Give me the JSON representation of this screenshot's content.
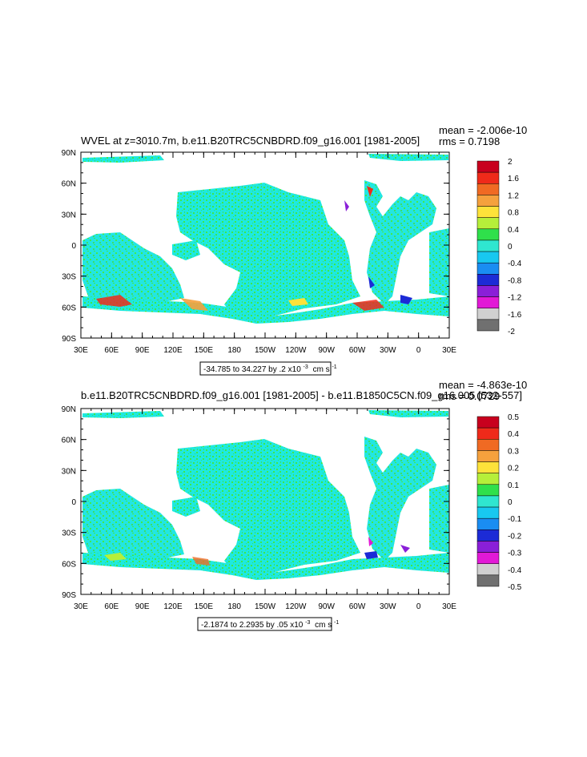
{
  "panels": [
    {
      "title": "WVEL at z=3010.7m, b.e11.B20TRC5CNBDRD.f09_g16.001 [1981-2005]",
      "mean_text": "mean = -2.006e-10",
      "rms_text": "rms = 0.7198",
      "range_text": "-34.785 to 34.227 by .2 x10",
      "range_exp": "-3",
      "range_unit": "cm s",
      "range_unit_exp": "-1",
      "colorbar_labels": [
        "2",
        "1.6",
        "1.2",
        "0.8",
        "0.4",
        "0",
        "-0.4",
        "-0.8",
        "-1.2",
        "-1.6",
        "-2"
      ]
    },
    {
      "title": "b.e11.B20TRC5CNBDRD.f09_g16.001 [1981-2005] - b.e11.B1850C5CN.f09_g16.005 [532-557]",
      "mean_text": "mean = -4.863e-10",
      "rms_text": "rms = 0.0729",
      "range_text": "-2.1874 to 2.2935 by .05 x10",
      "range_exp": "-3",
      "range_unit": "cm s",
      "range_unit_exp": "-1",
      "colorbar_labels": [
        "0.5",
        "0.4",
        "0.3",
        "0.2",
        "0.1",
        "0",
        "-0.1",
        "-0.2",
        "-0.3",
        "-0.4",
        "-0.5"
      ]
    }
  ],
  "map_axes": {
    "lon_labels": [
      "30E",
      "60E",
      "90E",
      "120E",
      "150E",
      "180",
      "150W",
      "120W",
      "90W",
      "60W",
      "30W",
      "0",
      "30E"
    ],
    "lat_labels": [
      "90N",
      "60N",
      "30N",
      "0",
      "30S",
      "60S",
      "90S"
    ]
  },
  "colors": {
    "ocean_base": "#1ee9e0",
    "ocean_green": "#3ee84a",
    "land": "#ffffff",
    "colorbar": [
      "#c8001e",
      "#ef2a1a",
      "#f06a23",
      "#f5a13d",
      "#fde23a",
      "#b6ef3a",
      "#2fe04b",
      "#2fe6d0",
      "#18c8f0",
      "#1a8df2",
      "#1c2bd6",
      "#8a1fd8",
      "#e219d6",
      "#d0d0d0",
      "#707070"
    ]
  }
}
